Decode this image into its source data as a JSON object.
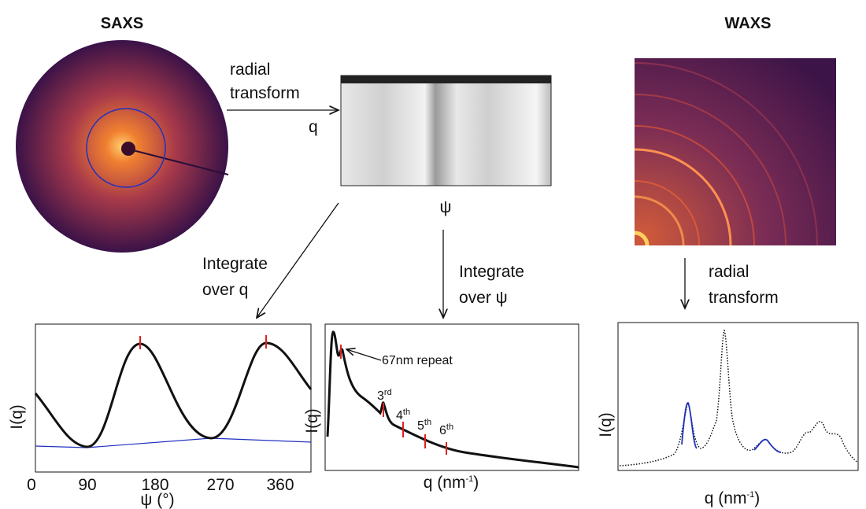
{
  "titles": {
    "saxs": "SAXS",
    "waxs": "WAXS"
  },
  "arrows": [
    {
      "lines": [
        "radial",
        "transform"
      ]
    },
    {
      "lines": [
        "Integrate",
        "over q"
      ]
    },
    {
      "lines": [
        "Integrate",
        "over ψ"
      ]
    },
    {
      "lines": [
        "radial",
        "transform"
      ]
    }
  ],
  "image_labels": {
    "q": "q",
    "psi": "ψ"
  },
  "plots": [
    {
      "y_label": "I(q)",
      "x_ticks": [
        "0",
        "90",
        "180",
        "270",
        "360"
      ],
      "x_label": "ψ (°)"
    },
    {
      "y_label": "I(q)",
      "x_label": {
        "base": "q (nm",
        "sup": "-1",
        "tail": ")"
      },
      "annotation": "67nm repeat",
      "orders": [
        {
          "n": "3",
          "sup": "rd"
        },
        {
          "n": "4",
          "sup": "th"
        },
        {
          "n": "5",
          "sup": "th"
        },
        {
          "n": "6",
          "sup": "th"
        }
      ]
    },
    {
      "y_label": "I(q)",
      "x_label": {
        "base": "q (nm",
        "sup": "-1",
        "tail": ")"
      }
    }
  ]
}
